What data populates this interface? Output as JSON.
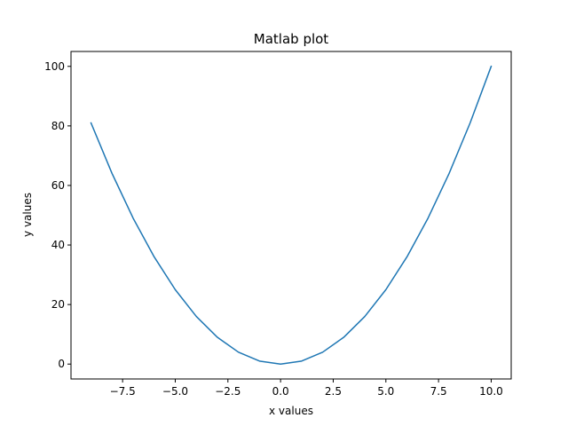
{
  "chart_data": {
    "type": "line",
    "title": "Matlab plot",
    "xlabel": "x values",
    "ylabel": "y values",
    "xlim": [
      -9.95,
      10.95
    ],
    "ylim": [
      -5,
      105
    ],
    "grid": false,
    "x_ticks": [
      -7.5,
      -5.0,
      -2.5,
      0.0,
      2.5,
      5.0,
      7.5,
      10.0
    ],
    "x_tick_labels": [
      "−7.5",
      "−5.0",
      "−2.5",
      "0.0",
      "2.5",
      "5.0",
      "7.5",
      "10.0"
    ],
    "y_ticks": [
      0,
      20,
      40,
      60,
      80,
      100
    ],
    "y_tick_labels": [
      "0",
      "20",
      "40",
      "60",
      "80",
      "100"
    ],
    "series": [
      {
        "color": "#1f77b4",
        "x": [
          -9,
          -8,
          -7,
          -6,
          -5,
          -4,
          -3,
          -2,
          -1,
          0,
          1,
          2,
          3,
          4,
          5,
          6,
          7,
          8,
          9,
          10
        ],
        "y": [
          81,
          64,
          49,
          36,
          25,
          16,
          9,
          4,
          1,
          0,
          1,
          4,
          9,
          16,
          25,
          36,
          49,
          64,
          81,
          100
        ]
      }
    ]
  }
}
